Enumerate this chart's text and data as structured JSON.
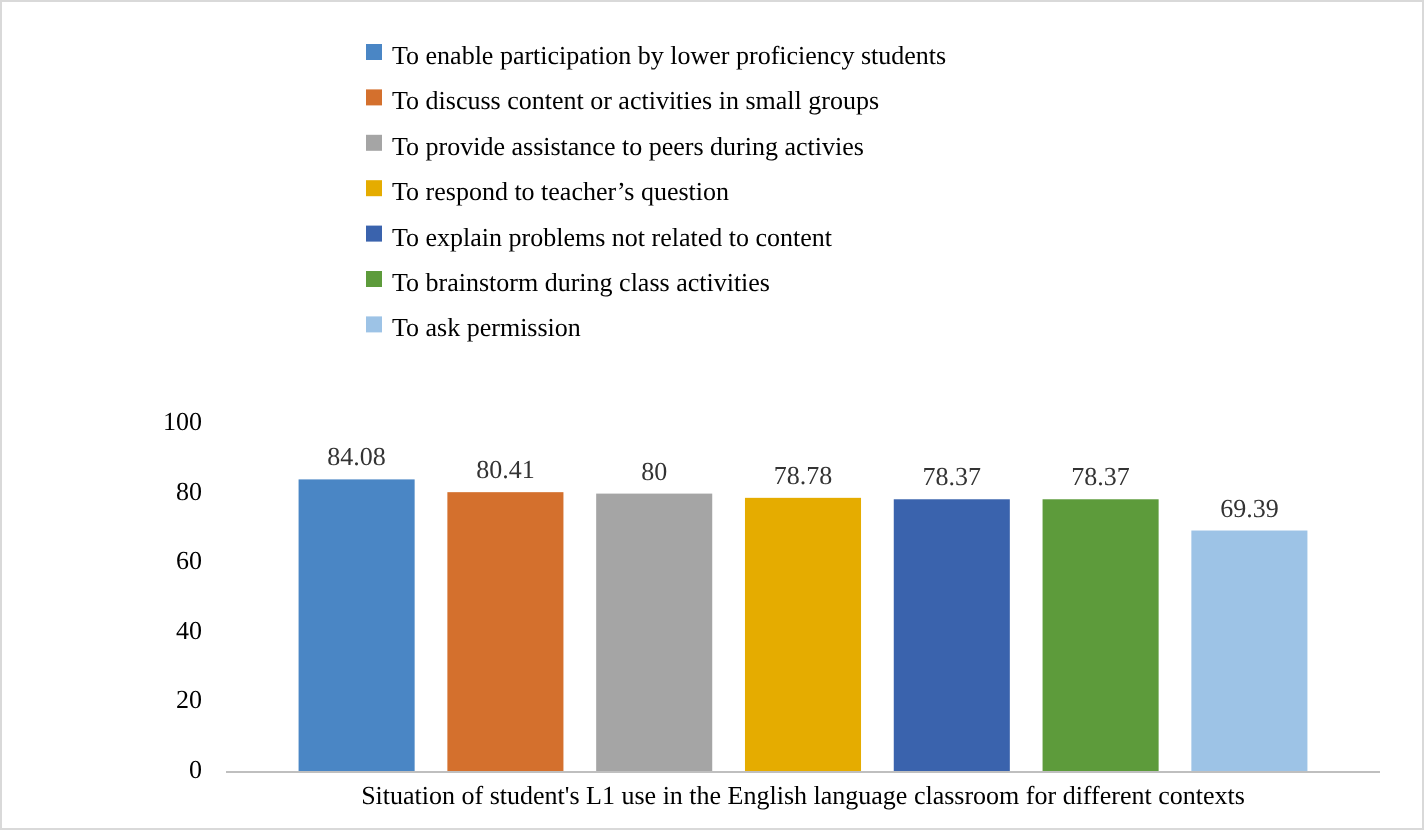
{
  "chart_data": {
    "type": "bar",
    "categories": [
      "Situation of student's L1 use in the English language classroom for different contexts"
    ],
    "series": [
      {
        "name": "To enable participation by lower proficiency students",
        "color": "#4a86c5",
        "values": [
          84.08
        ]
      },
      {
        "name": "To discuss content or activities in small groups",
        "color": "#d4702d",
        "values": [
          80.41
        ]
      },
      {
        "name": "To provide assistance to peers during activies",
        "color": "#a5a5a5",
        "values": [
          80
        ]
      },
      {
        "name": "To respond to teacher’s question",
        "color": "#e5ac00",
        "values": [
          78.78
        ]
      },
      {
        "name": "To explain problems not related to content",
        "color": "#3a63ad",
        "values": [
          78.37
        ]
      },
      {
        "name": "To brainstorm during class activities",
        "color": "#5d9b3b",
        "values": [
          78.37
        ]
      },
      {
        "name": "To ask permission",
        "color": "#9dc3e6",
        "values": [
          69.39
        ]
      }
    ],
    "ylim": [
      0,
      100
    ],
    "yticks": [
      0,
      20,
      40,
      60,
      80,
      100
    ],
    "data_labels": true,
    "legend": "top",
    "grid": false
  }
}
